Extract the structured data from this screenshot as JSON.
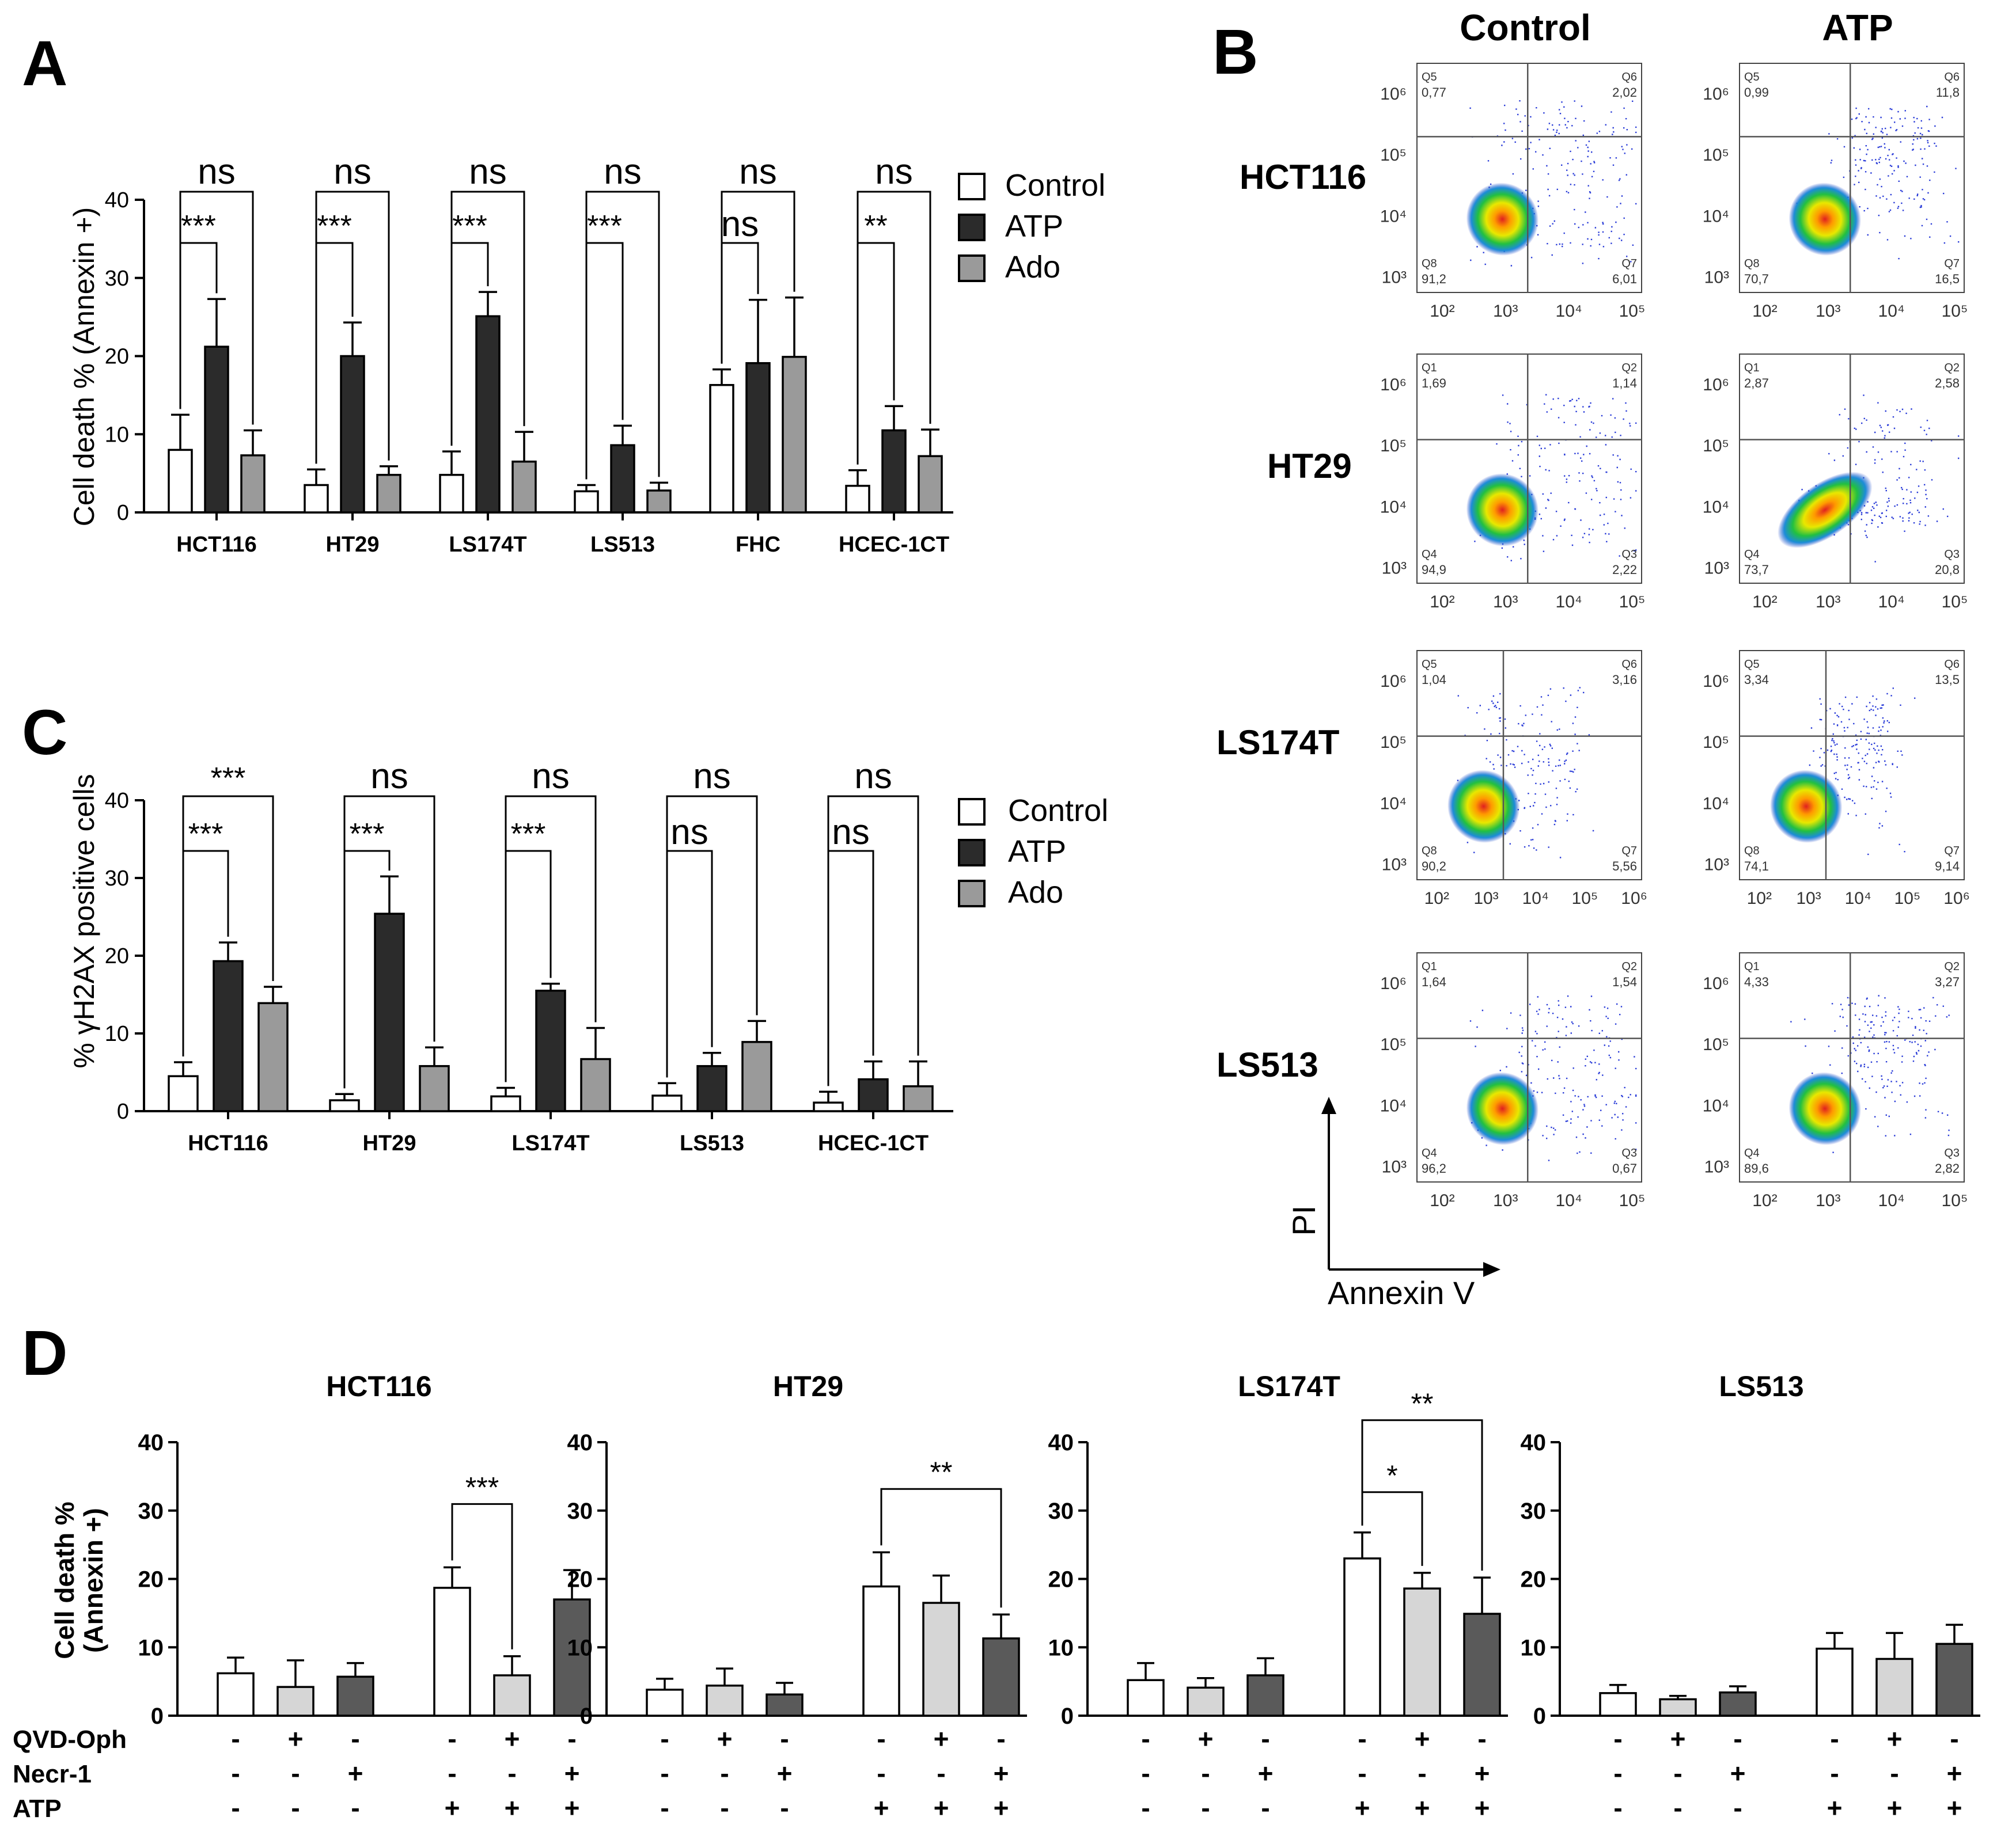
{
  "figure": {
    "colors": {
      "control": "#ffffff",
      "atp": "#2b2b2b",
      "ado": "#9a9a9a",
      "d_light": "#d6d6d6",
      "d_dark": "#5a5a5a",
      "axis": "#000000"
    },
    "panel_letters": {
      "a": "A",
      "b": "B",
      "c": "C",
      "d": "D"
    }
  },
  "chart_data": [
    {
      "id": "A",
      "type": "bar",
      "ylabel": "Cell death % (Annexin +)",
      "ylim": [
        0,
        40
      ],
      "yticks": [
        "0",
        "10",
        "20",
        "30",
        "40"
      ],
      "legend": [
        "Control",
        "ATP",
        "Ado"
      ],
      "legend_position": "right",
      "categories": [
        "HCT116",
        "HT29",
        "LS174T",
        "LS513",
        "FHC",
        "HCEC-1CT"
      ],
      "series": [
        {
          "name": "Control",
          "values": [
            8,
            3.5,
            4.8,
            2.7,
            16.3,
            3.4
          ],
          "errors": [
            4.5,
            2.0,
            3.0,
            0.8,
            2.0,
            2.0
          ]
        },
        {
          "name": "ATP",
          "values": [
            21.2,
            20.0,
            25.1,
            8.6,
            19.1,
            10.5
          ],
          "errors": [
            6.1,
            4.3,
            3.1,
            2.5,
            8.1,
            3.1
          ]
        },
        {
          "name": "Ado",
          "values": [
            7.3,
            4.8,
            6.5,
            2.8,
            19.9,
            7.2
          ],
          "errors": [
            3.2,
            1.1,
            3.8,
            1.0,
            7.6,
            3.4
          ]
        }
      ],
      "sig_outer": [
        "ns",
        "ns",
        "ns",
        "ns",
        "ns",
        "ns"
      ],
      "sig_inner": [
        "***",
        "***",
        "***",
        "***",
        "ns",
        "**"
      ]
    },
    {
      "id": "C",
      "type": "bar",
      "ylabel": "% γH2AX positive cells",
      "ylim": [
        0,
        40
      ],
      "yticks": [
        "0",
        "10",
        "20",
        "30",
        "40"
      ],
      "legend": [
        "Control",
        "ATP",
        "Ado"
      ],
      "legend_position": "right",
      "categories": [
        "HCT116",
        "HT29",
        "LS174T",
        "LS513",
        "HCEC-1CT"
      ],
      "series": [
        {
          "name": "Control",
          "values": [
            4.5,
            1.4,
            1.9,
            2.0,
            1.1
          ],
          "errors": [
            1.8,
            0.8,
            1.1,
            1.6,
            1.4
          ]
        },
        {
          "name": "ATP",
          "values": [
            19.3,
            25.4,
            15.5,
            5.8,
            4.1
          ],
          "errors": [
            2.4,
            4.8,
            0.9,
            1.7,
            2.3
          ]
        },
        {
          "name": "Ado",
          "values": [
            13.9,
            5.8,
            6.7,
            8.9,
            3.2
          ],
          "errors": [
            2.1,
            2.4,
            4.0,
            2.7,
            3.2
          ]
        }
      ],
      "sig_outer": [
        "***",
        "ns",
        "ns",
        "ns",
        "ns"
      ],
      "sig_inner": [
        "***",
        "***",
        "***",
        "ns",
        "ns"
      ]
    },
    {
      "id": "B",
      "type": "scatter",
      "column_titles": [
        "Control",
        "ATP"
      ],
      "row_labels": [
        "HCT116",
        "HT29",
        "LS174T",
        "LS513"
      ],
      "xlabel": "Annexin V",
      "ylabel": "PI",
      "plots": [
        {
          "row": 0,
          "col": 0,
          "q": [
            "Q5",
            "Q6",
            "Q8",
            "Q7"
          ],
          "v": [
            "0,77",
            "2,02",
            "91,2",
            "6,01"
          ],
          "xmax": 5,
          "ymax": 6,
          "gate_y": 5.3,
          "pattern": "control"
        },
        {
          "row": 0,
          "col": 1,
          "q": [
            "Q5",
            "Q6",
            "Q8",
            "Q7"
          ],
          "v": [
            "0,99",
            "11,8",
            "70,7",
            "16,5"
          ],
          "xmax": 5,
          "ymax": 6,
          "gate_y": 5.3,
          "pattern": "atp"
        },
        {
          "row": 1,
          "col": 0,
          "q": [
            "Q1",
            "Q2",
            "Q4",
            "Q3"
          ],
          "v": [
            "1,69",
            "1,14",
            "94,9",
            "2,22"
          ],
          "xmax": 5,
          "ymax": 6,
          "gate_y": 5.1,
          "pattern": "control"
        },
        {
          "row": 1,
          "col": 1,
          "q": [
            "Q1",
            "Q2",
            "Q4",
            "Q3"
          ],
          "v": [
            "2,87",
            "2,58",
            "73,7",
            "20,8"
          ],
          "xmax": 5,
          "ymax": 6,
          "gate_y": 5.1,
          "pattern": "atp_h"
        },
        {
          "row": 2,
          "col": 0,
          "q": [
            "Q5",
            "Q6",
            "Q8",
            "Q7"
          ],
          "v": [
            "1,04",
            "3,16",
            "90,2",
            "5,56"
          ],
          "xmax": 6,
          "ymax": 6,
          "gate_y": 5.1,
          "pattern": "control"
        },
        {
          "row": 2,
          "col": 1,
          "q": [
            "Q5",
            "Q6",
            "Q8",
            "Q7"
          ],
          "v": [
            "3,34",
            "13,5",
            "74,1",
            "9,14"
          ],
          "xmax": 6,
          "ymax": 6,
          "gate_y": 5.1,
          "pattern": "atp"
        },
        {
          "row": 3,
          "col": 0,
          "q": [
            "Q1",
            "Q2",
            "Q4",
            "Q3"
          ],
          "v": [
            "1,64",
            "1,54",
            "96,2",
            "0,67"
          ],
          "xmax": 5,
          "ymax": 6,
          "gate_y": 5.1,
          "pattern": "control"
        },
        {
          "row": 3,
          "col": 1,
          "q": [
            "Q1",
            "Q2",
            "Q4",
            "Q3"
          ],
          "v": [
            "4,33",
            "3,27",
            "89,6",
            "2,82"
          ],
          "xmax": 5,
          "ymax": 6,
          "gate_y": 5.1,
          "pattern": "atp"
        }
      ]
    },
    {
      "id": "D",
      "type": "bar",
      "ylabel_line1": "Cell death %",
      "ylabel_line2": "(Annexin +)",
      "ylim": [
        0,
        40
      ],
      "yticks": [
        "0",
        "10",
        "20",
        "30",
        "40"
      ],
      "row_labels": [
        "QVD-Oph",
        "Necr-1",
        "ATP"
      ],
      "treatments": [
        [
          "-",
          "+",
          "-",
          "-",
          "+",
          "-"
        ],
        [
          "-",
          "-",
          "+",
          "-",
          "-",
          "+"
        ],
        [
          "-",
          "-",
          "-",
          "+",
          "+",
          "+"
        ]
      ],
      "panels": [
        {
          "title": "HCT116",
          "values": [
            6.2,
            4.2,
            5.7,
            18.7,
            5.9,
            17.0
          ],
          "errors": [
            2.3,
            3.9,
            2.0,
            3.0,
            2.8,
            4.3
          ],
          "sigs": [
            {
              "from": 3,
              "to": 4,
              "label": "***",
              "level": 0
            }
          ]
        },
        {
          "title": "HT29",
          "values": [
            3.8,
            4.4,
            3.1,
            18.9,
            16.5,
            11.3
          ],
          "errors": [
            1.6,
            2.5,
            1.7,
            5.0,
            4.0,
            3.5
          ],
          "sigs": [
            {
              "from": 3,
              "to": 5,
              "label": "**",
              "level": 0
            }
          ]
        },
        {
          "title": "LS174T",
          "values": [
            5.2,
            4.1,
            5.9,
            23.0,
            18.6,
            14.9
          ],
          "errors": [
            2.5,
            1.4,
            2.5,
            3.8,
            2.3,
            5.3
          ],
          "sigs": [
            {
              "from": 3,
              "to": 4,
              "label": "*",
              "level": 0
            },
            {
              "from": 3,
              "to": 5,
              "label": "**",
              "level": 1
            }
          ]
        },
        {
          "title": "LS513",
          "values": [
            3.3,
            2.4,
            3.4,
            9.8,
            8.3,
            10.5
          ],
          "errors": [
            1.2,
            0.5,
            0.9,
            2.3,
            3.8,
            2.8
          ],
          "sigs": []
        }
      ]
    }
  ]
}
